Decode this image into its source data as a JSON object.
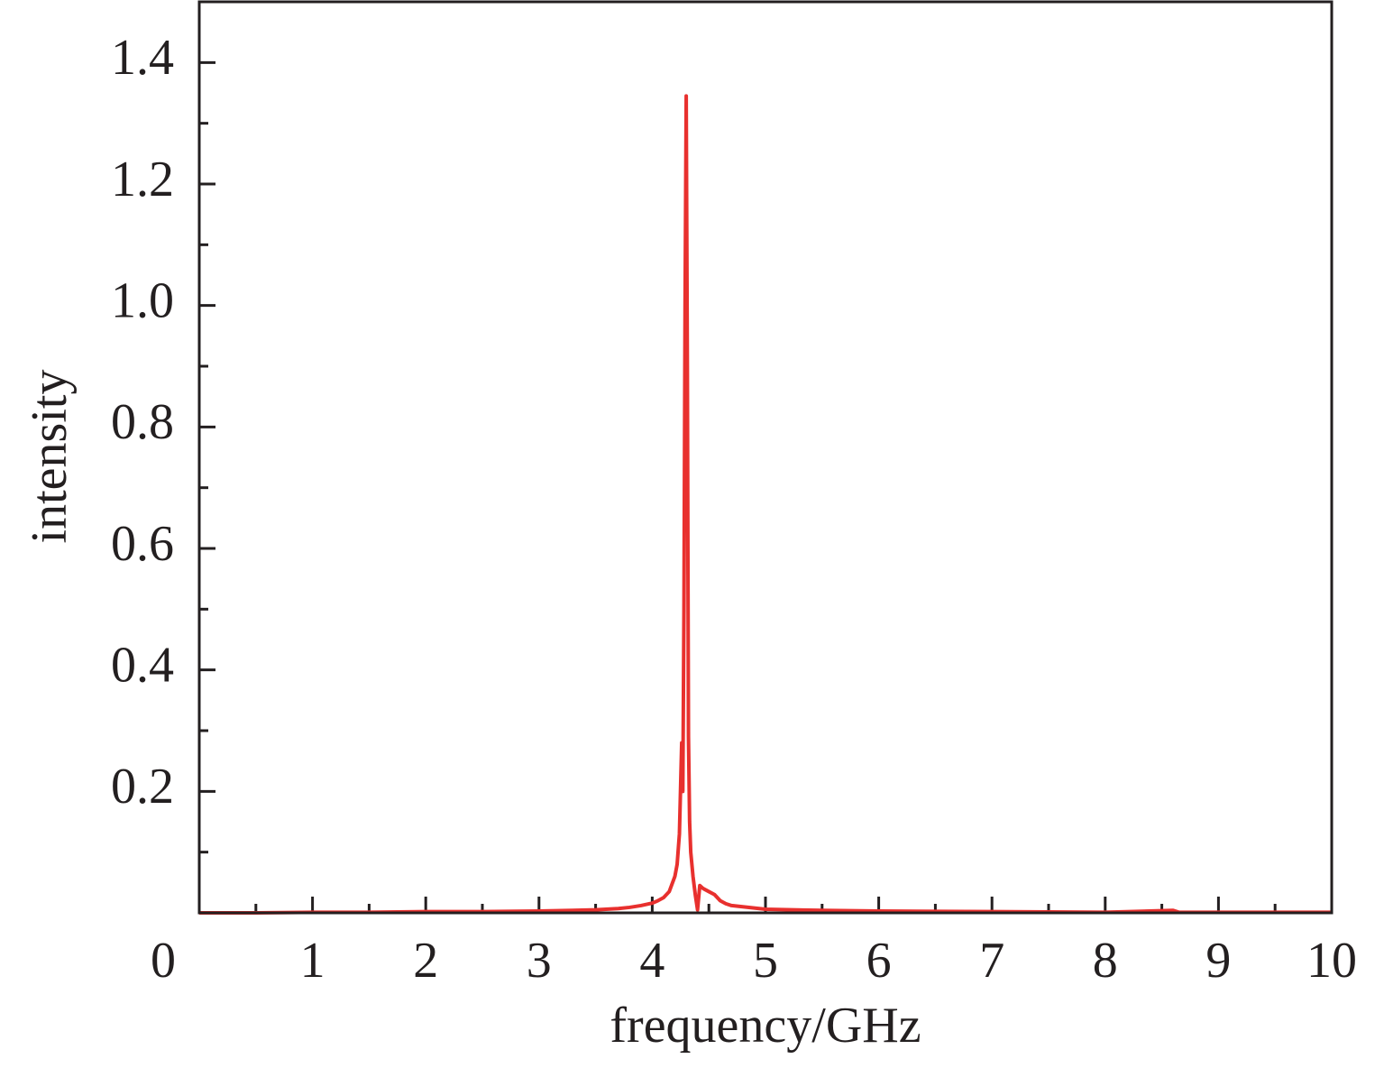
{
  "chart_data": {
    "type": "line",
    "xlabel": "frequency/GHz",
    "ylabel": "intensity",
    "x": [
      0,
      0.5,
      1,
      1.5,
      2,
      2.5,
      3,
      3.3,
      3.5,
      3.7,
      3.8,
      3.9,
      4.0,
      4.05,
      4.1,
      4.15,
      4.2,
      4.22,
      4.24,
      4.26,
      4.27,
      4.28,
      4.29,
      4.3,
      4.31,
      4.32,
      4.33,
      4.34,
      4.36,
      4.38,
      4.4,
      4.42,
      4.45,
      4.5,
      4.55,
      4.6,
      4.65,
      4.7,
      4.8,
      4.9,
      5.0,
      5.5,
      6,
      7,
      8,
      8.6,
      8.65,
      8.7,
      9,
      10
    ],
    "series": [
      {
        "color": "#e8302e",
        "values": [
          0,
          0,
          0.001,
          0.001,
          0.002,
          0.002,
          0.003,
          0.004,
          0.005,
          0.007,
          0.009,
          0.012,
          0.016,
          0.02,
          0.025,
          0.035,
          0.06,
          0.08,
          0.13,
          0.28,
          0.2,
          0.5,
          1.0,
          1.345,
          0.9,
          0.29,
          0.15,
          0.1,
          0.06,
          0.03,
          0.005,
          0.045,
          0.04,
          0.035,
          0.03,
          0.02,
          0.015,
          0.012,
          0.01,
          0.008,
          0.006,
          0.004,
          0.003,
          0.002,
          0.001,
          0.004,
          0.001,
          0.001,
          0.001,
          0.001
        ]
      }
    ],
    "xlim": [
      0,
      10
    ],
    "xticks": [
      0,
      1,
      2,
      3,
      4,
      5,
      6,
      7,
      8,
      9,
      10
    ],
    "ylim": [
      0,
      1.5
    ],
    "yticks": [
      0.2,
      0.4,
      0.6,
      0.8,
      {
        "value": 1,
        "label": "1.0"
      },
      1.2,
      1.4
    ]
  }
}
